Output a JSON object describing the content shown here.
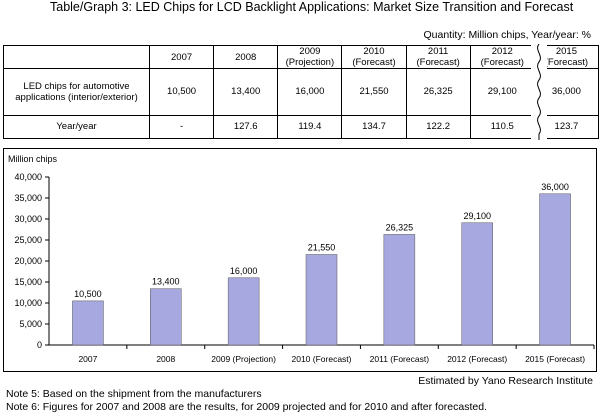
{
  "title": "Table/Graph 3:  LED Chips for LCD Backlight Applications: Market Size Transition and Forecast",
  "quantity_note": "Quantity: Million chips, Year/year: %",
  "table": {
    "headers": [
      "2007",
      "2008",
      "2009\n(Projection)",
      "2010\n(Forecast)",
      "2011\n(Forecast)",
      "2012\n(Forecast)",
      "2015\n(Forecast)"
    ],
    "rows": [
      {
        "label": "LED chips for automotive applications (interior/exterior)",
        "values": [
          "10,500",
          "13,400",
          "16,000",
          "21,550",
          "26,325",
          "29,100",
          "36,000"
        ]
      },
      {
        "label": "Year/year",
        "values": [
          "-",
          "127.6",
          "119.4",
          "134.7",
          "122.2",
          "110.5",
          "123.7"
        ]
      }
    ]
  },
  "chart_data": {
    "type": "bar",
    "categories": [
      "2007",
      "2008",
      "2009 (Projection)",
      "2010 (Forecast)",
      "2011 (Forecast)",
      "2012 (Forecast)",
      "2015 (Forecast)"
    ],
    "values": [
      10500,
      13400,
      16000,
      21550,
      26325,
      29100,
      36000
    ],
    "value_labels": [
      "10,500",
      "13,400",
      "16,000",
      "21,550",
      "26,325",
      "29,100",
      "36,000"
    ],
    "ylabel": "Million chips",
    "ylim": [
      0,
      40000
    ],
    "yticks": [
      0,
      5000,
      10000,
      15000,
      20000,
      25000,
      30000,
      35000,
      40000
    ],
    "ytick_labels": [
      "0",
      "5,000",
      "10,000",
      "15,000",
      "20,000",
      "25,000",
      "30,000",
      "35,000",
      "40,000"
    ],
    "grid": false,
    "bar_color": "#a8a8e0"
  },
  "notes": {
    "note5": "Note 5: Based on the shipment from the manufacturers",
    "note6": "Note 6: Figures for 2007 and 2008 are the results, for 2009 projected and for 2010 and after forecasted.",
    "credit": "Estimated by Yano Research Institute"
  }
}
